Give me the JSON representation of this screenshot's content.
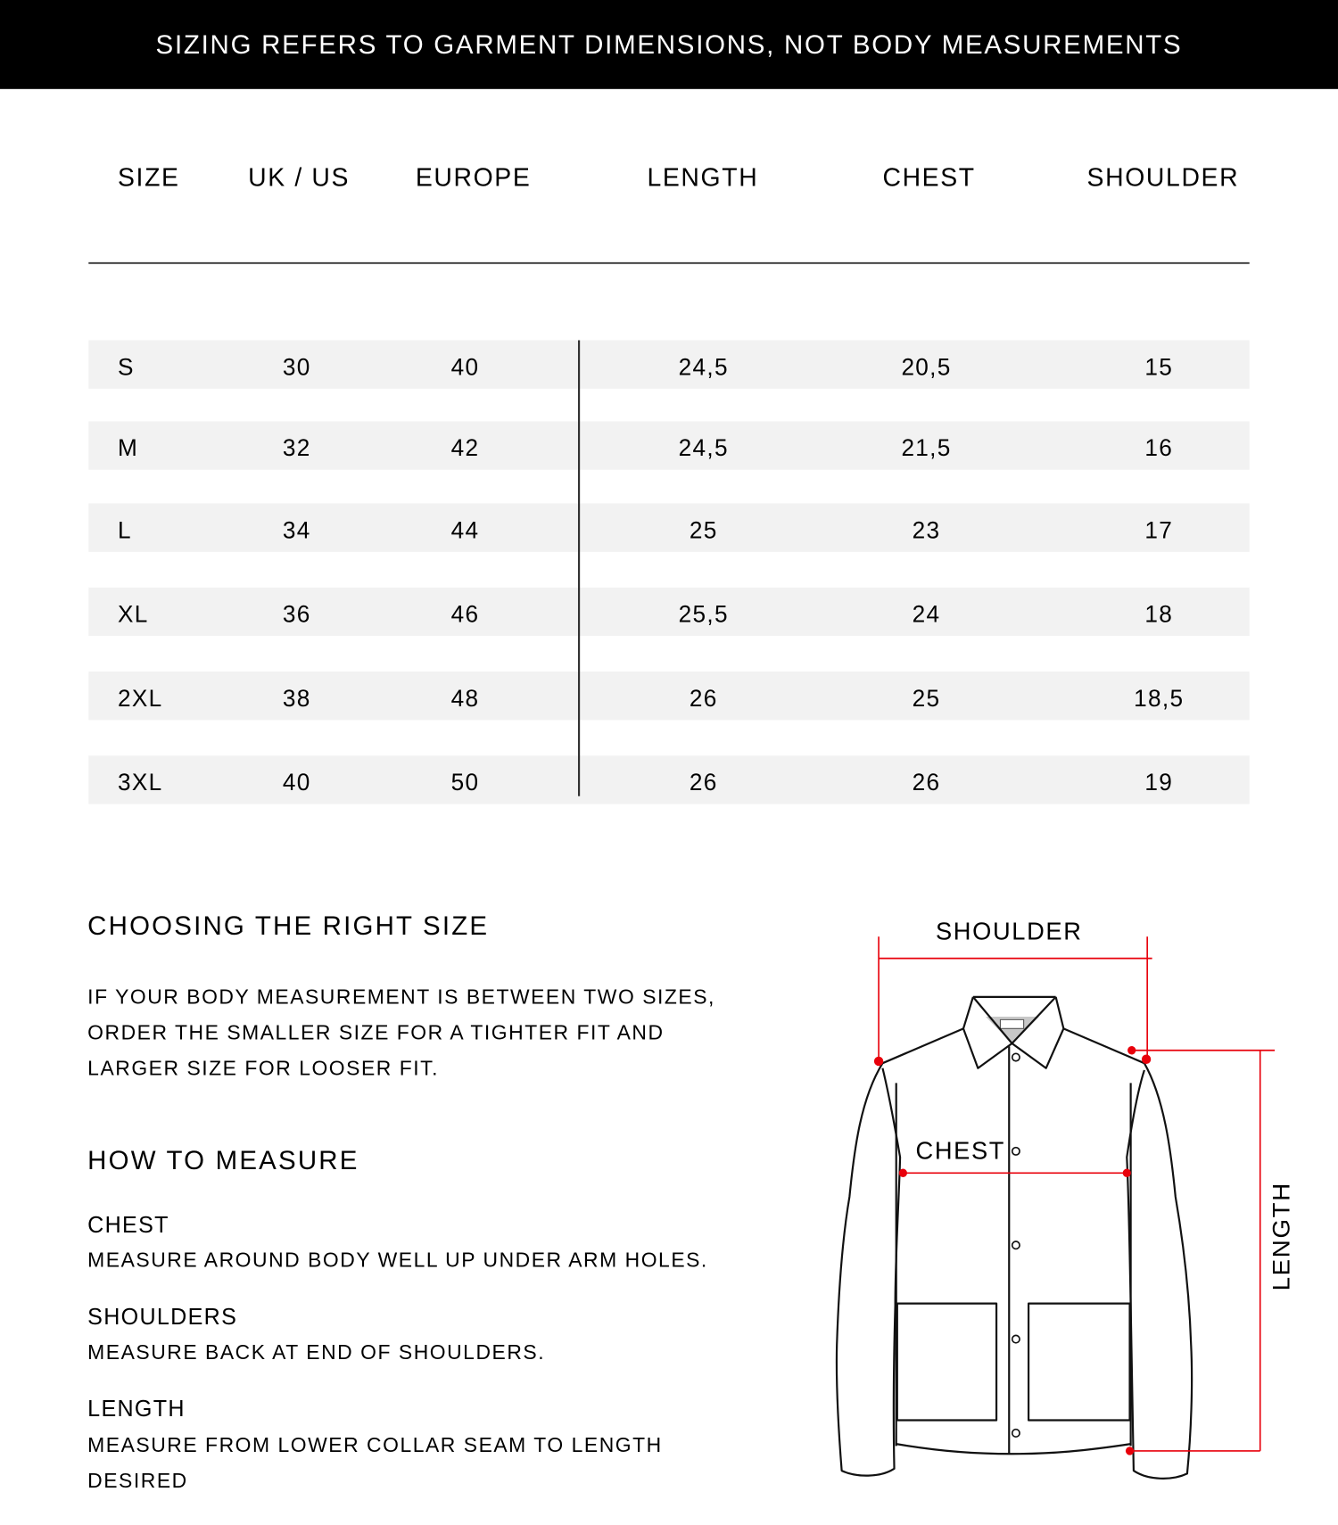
{
  "banner": "SIZING REFERS TO GARMENT DIMENSIONS, NOT BODY MEASUREMENTS",
  "table": {
    "headers": [
      "SIZE",
      "UK / US",
      "EUROPE",
      "LENGTH",
      "CHEST",
      "SHOULDER"
    ],
    "rows": [
      [
        "S",
        "30",
        "40",
        "24,5",
        "20,5",
        "15"
      ],
      [
        "M",
        "32",
        "42",
        "24,5",
        "21,5",
        "16"
      ],
      [
        "L",
        "34",
        "44",
        "25",
        "23",
        "17"
      ],
      [
        "XL",
        "36",
        "46",
        "25,5",
        "24",
        "18"
      ],
      [
        "2XL",
        "38",
        "48",
        "26",
        "25",
        "18,5"
      ],
      [
        "3XL",
        "40",
        "50",
        "26",
        "26",
        "19"
      ]
    ]
  },
  "guide": {
    "choosing_title": "CHOOSING THE RIGHT SIZE",
    "choosing_lines": [
      "IF YOUR BODY MEASUREMENT IS BETWEEN TWO SIZES,",
      "ORDER THE SMALLER SIZE FOR A TIGHTER FIT AND",
      "LARGER SIZE FOR LOOSER FIT."
    ],
    "measure_title": "HOW TO MEASURE",
    "items": [
      {
        "label": "CHEST",
        "lines": [
          "MEASURE AROUND BODY WELL UP UNDER ARM HOLES."
        ]
      },
      {
        "label": "SHOULDERS",
        "lines": [
          "MEASURE BACK AT END OF SHOULDERS."
        ]
      },
      {
        "label": "LENGTH",
        "lines": [
          "MEASURE FROM LOWER COLLAR SEAM TO LENGTH",
          "DESIRED"
        ]
      }
    ]
  },
  "diagram": {
    "shoulder_label": "SHOULDER",
    "chest_label": "CHEST",
    "length_label": "LENGTH",
    "marker_color": "#e8000b",
    "icon": "jacket-outline-icon"
  }
}
